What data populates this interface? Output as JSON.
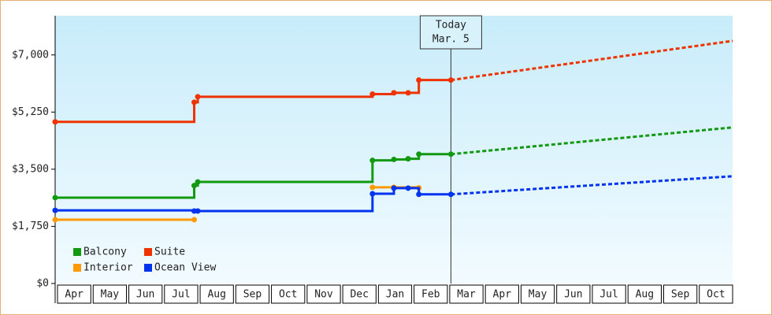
{
  "chart_data": {
    "type": "step-line",
    "categories": [
      "Apr",
      "May",
      "Jun",
      "Jul",
      "Aug",
      "Sep",
      "Oct",
      "Nov",
      "Dec",
      "Jan",
      "Feb",
      "Mar",
      "Apr",
      "May",
      "Jun",
      "Jul",
      "Aug",
      "Sep",
      "Oct"
    ],
    "xlim": [
      0,
      19
    ],
    "ylim": [
      0,
      8200
    ],
    "yticks": [
      {
        "value": 0,
        "label": "$0"
      },
      {
        "value": 1750,
        "label": "$1,750"
      },
      {
        "value": 3500,
        "label": "$3,500"
      },
      {
        "value": 5250,
        "label": "$5,250"
      },
      {
        "value": 7000,
        "label": "$7,000"
      }
    ],
    "today": {
      "x": 11.1,
      "title": "Today",
      "date": "Mar. 5"
    },
    "series": [
      {
        "name": "Balcony",
        "color": "#119911",
        "x": [
          0,
          3.9,
          4.0,
          8.9,
          9.5,
          9.9,
          10.2,
          11.1
        ],
        "values": [
          2630,
          3000,
          3110,
          3770,
          3800,
          3820,
          3960,
          3960
        ],
        "projection": {
          "x": [
            11.1,
            19
          ],
          "values": [
            3960,
            4780
          ]
        }
      },
      {
        "name": "Suite",
        "color": "#ee3300",
        "x": [
          0,
          3.9,
          4.0,
          8.9,
          9.5,
          9.9,
          10.2,
          11.1
        ],
        "values": [
          4950,
          5550,
          5720,
          5800,
          5840,
          5840,
          6230,
          6230
        ],
        "projection": {
          "x": [
            11.1,
            19
          ],
          "values": [
            6230,
            7430
          ]
        }
      },
      {
        "name": "Interior",
        "color": "#ff9900",
        "x": [
          0,
          3.9,
          3.9,
          8.9,
          9.5,
          10.2
        ],
        "values": [
          1955,
          1955,
          null,
          2945,
          2945,
          2930
        ]
      },
      {
        "name": "Ocean View",
        "color": "#0033ee",
        "x": [
          0,
          3.9,
          4.0,
          8.9,
          9.5,
          9.9,
          10.2,
          11.1
        ],
        "values": [
          2240,
          2220,
          2220,
          2750,
          2920,
          2920,
          2730,
          2730
        ],
        "projection": {
          "x": [
            11.1,
            19
          ],
          "values": [
            2730,
            3285
          ]
        }
      }
    ]
  }
}
